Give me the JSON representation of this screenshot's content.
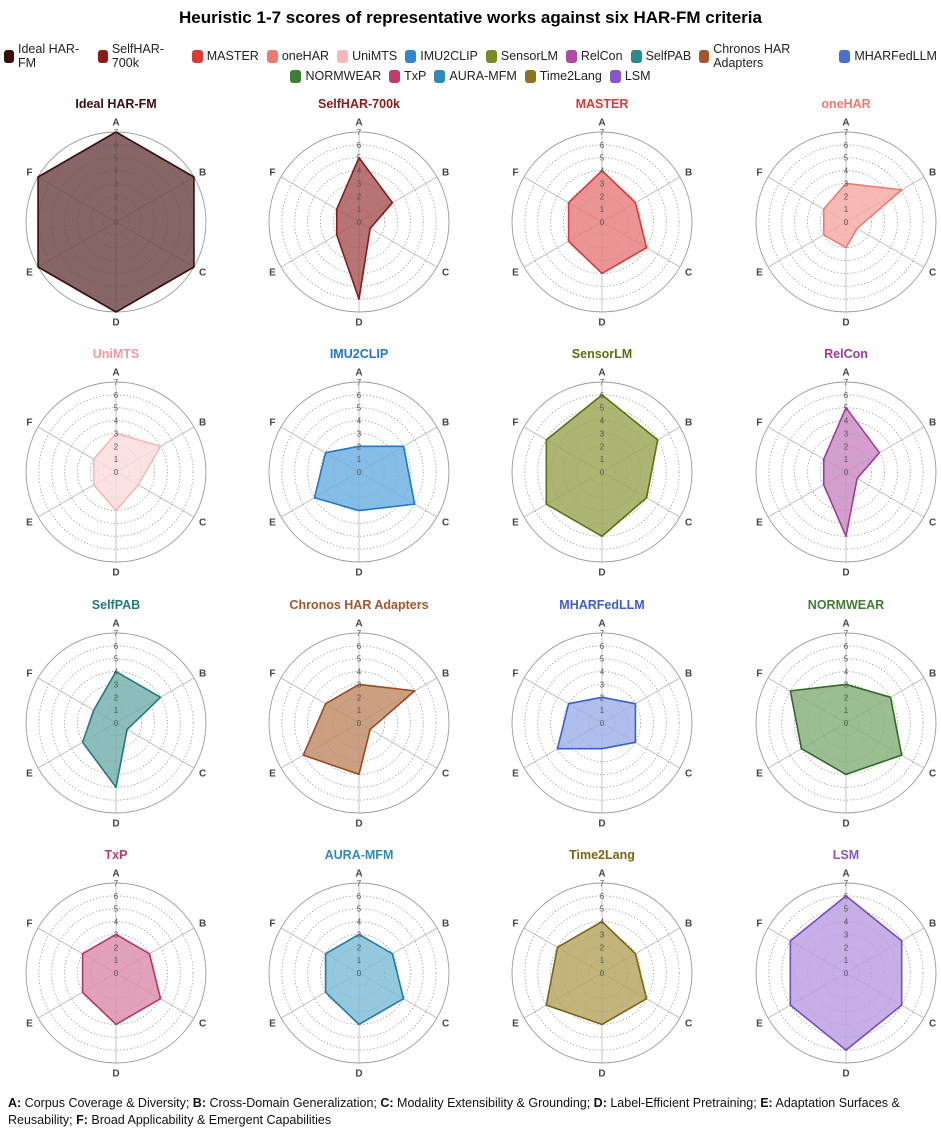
{
  "title": "Heuristic 1-7 scores of representative works against six HAR-FM criteria",
  "legend": [
    {
      "name": "Ideal HAR-FM",
      "color": "#3b0d0d"
    },
    {
      "name": "SelfHAR-700k",
      "color": "#8b1a1a"
    },
    {
      "name": "MASTER",
      "color": "#d93a3a"
    },
    {
      "name": "oneHAR",
      "color": "#f07a72"
    },
    {
      "name": "UniMTS",
      "color": "#f6b8b8"
    },
    {
      "name": "IMU2CLIP",
      "color": "#2f86cf"
    },
    {
      "name": "SensorLM",
      "color": "#7a8a22"
    },
    {
      "name": "RelCon",
      "color": "#b04aa6"
    },
    {
      "name": "SelfPAB",
      "color": "#2a8b8b"
    },
    {
      "name": "Chronos HAR Adapters",
      "color": "#a8552a"
    },
    {
      "name": "MHARFedLLM",
      "color": "#4a6fd4"
    },
    {
      "name": "NORMWEAR",
      "color": "#3f7f35"
    },
    {
      "name": "TxP",
      "color": "#c23a6e"
    },
    {
      "name": "AURA-MFM",
      "color": "#2f8ab8"
    },
    {
      "name": "Time2Lang",
      "color": "#8a7420"
    },
    {
      "name": "LSM",
      "color": "#8a55c8"
    }
  ],
  "chart_data": {
    "type": "radar",
    "axes": [
      "A",
      "B",
      "C",
      "D",
      "E",
      "F"
    ],
    "rlim": [
      0,
      7
    ],
    "ticks": [
      "0",
      "1",
      "2",
      "3",
      "4",
      "5",
      "6",
      "7"
    ],
    "series": [
      {
        "name": "Ideal HAR-FM",
        "values": [
          7,
          7,
          7,
          7,
          7,
          7
        ],
        "color": "#3b0d0d",
        "fill": "#6b4444",
        "text": "#3b0d0d"
      },
      {
        "name": "SelfHAR-700k",
        "values": [
          5,
          3,
          1,
          6,
          2,
          2
        ],
        "color": "#8b1a1a",
        "fill": "#a65555",
        "text": "#8b1a1a"
      },
      {
        "name": "MASTER",
        "values": [
          4,
          3,
          4,
          4,
          3,
          3
        ],
        "color": "#d93a3a",
        "fill": "#e57d7d",
        "text": "#d93a3a"
      },
      {
        "name": "oneHAR",
        "values": [
          3,
          5,
          1,
          2,
          2,
          2
        ],
        "color": "#f07a72",
        "fill": "#f5aaa4",
        "text": "#f07a72"
      },
      {
        "name": "UniMTS",
        "values": [
          3,
          4,
          2,
          3,
          2,
          2
        ],
        "color": "#f6b8b8",
        "fill": "#fadcdc",
        "text": "#f09a9a"
      },
      {
        "name": "IMU2CLIP",
        "values": [
          2,
          4,
          5,
          3,
          4,
          3
        ],
        "color": "#1f78c8",
        "fill": "#6aaee0",
        "text": "#1f78c8"
      },
      {
        "name": "SensorLM",
        "values": [
          6,
          5,
          4,
          5,
          5,
          5
        ],
        "color": "#5f6e10",
        "fill": "#9aa653",
        "text": "#5f6e10"
      },
      {
        "name": "RelCon",
        "values": [
          5,
          3,
          1,
          5,
          2,
          2
        ],
        "color": "#a03c98",
        "fill": "#c98bc3",
        "text": "#a03c98"
      },
      {
        "name": "SelfPAB",
        "values": [
          4,
          4,
          1,
          5,
          3,
          2
        ],
        "color": "#247a7a",
        "fill": "#72b0ab",
        "text": "#247a7a"
      },
      {
        "name": "Chronos HAR Adapters",
        "values": [
          3,
          5,
          1,
          4,
          5,
          3
        ],
        "color": "#9a4a20",
        "fill": "#c08a66",
        "text": "#a8552a"
      },
      {
        "name": "MHARFedLLM",
        "values": [
          2,
          3,
          3,
          2,
          4,
          3
        ],
        "color": "#3a5fd0",
        "fill": "#9fb0ea",
        "text": "#3a5fd0"
      },
      {
        "name": "NORMWEAR",
        "values": [
          3,
          4,
          5,
          4,
          4,
          5
        ],
        "color": "#2f6a28",
        "fill": "#84ae7a",
        "text": "#3f7f35"
      },
      {
        "name": "TxP",
        "values": [
          3,
          3,
          4,
          4,
          3,
          3
        ],
        "color": "#b8336a",
        "fill": "#da8caa",
        "text": "#c23a6e"
      },
      {
        "name": "AURA-MFM",
        "values": [
          3,
          3,
          4,
          4,
          3,
          3
        ],
        "color": "#1f7aa8",
        "fill": "#7dbcd6",
        "text": "#2f8ab8"
      },
      {
        "name": "Time2Lang",
        "values": [
          4,
          3,
          4,
          4,
          5,
          4
        ],
        "color": "#7a6414",
        "fill": "#b4a45e",
        "text": "#7a6414"
      },
      {
        "name": "LSM",
        "values": [
          6,
          5,
          5,
          6,
          5,
          5
        ],
        "color": "#7b48c0",
        "fill": "#b89ee0",
        "text": "#8a55c8"
      }
    ]
  },
  "footer": [
    {
      "key": "A:",
      "text": " Corpus Coverage & Diversity; "
    },
    {
      "key": "B:",
      "text": " Cross-Domain Generalization; "
    },
    {
      "key": "C:",
      "text": " Modality Extensibility & Grounding; "
    },
    {
      "key": "D:",
      "text": " Label-Efficient Pretraining; "
    },
    {
      "key": "E:",
      "text": " Adaptation Surfaces & Reusability; "
    },
    {
      "key": "F:",
      "text": " Broad Applicability & Emergent Capabilities"
    }
  ]
}
